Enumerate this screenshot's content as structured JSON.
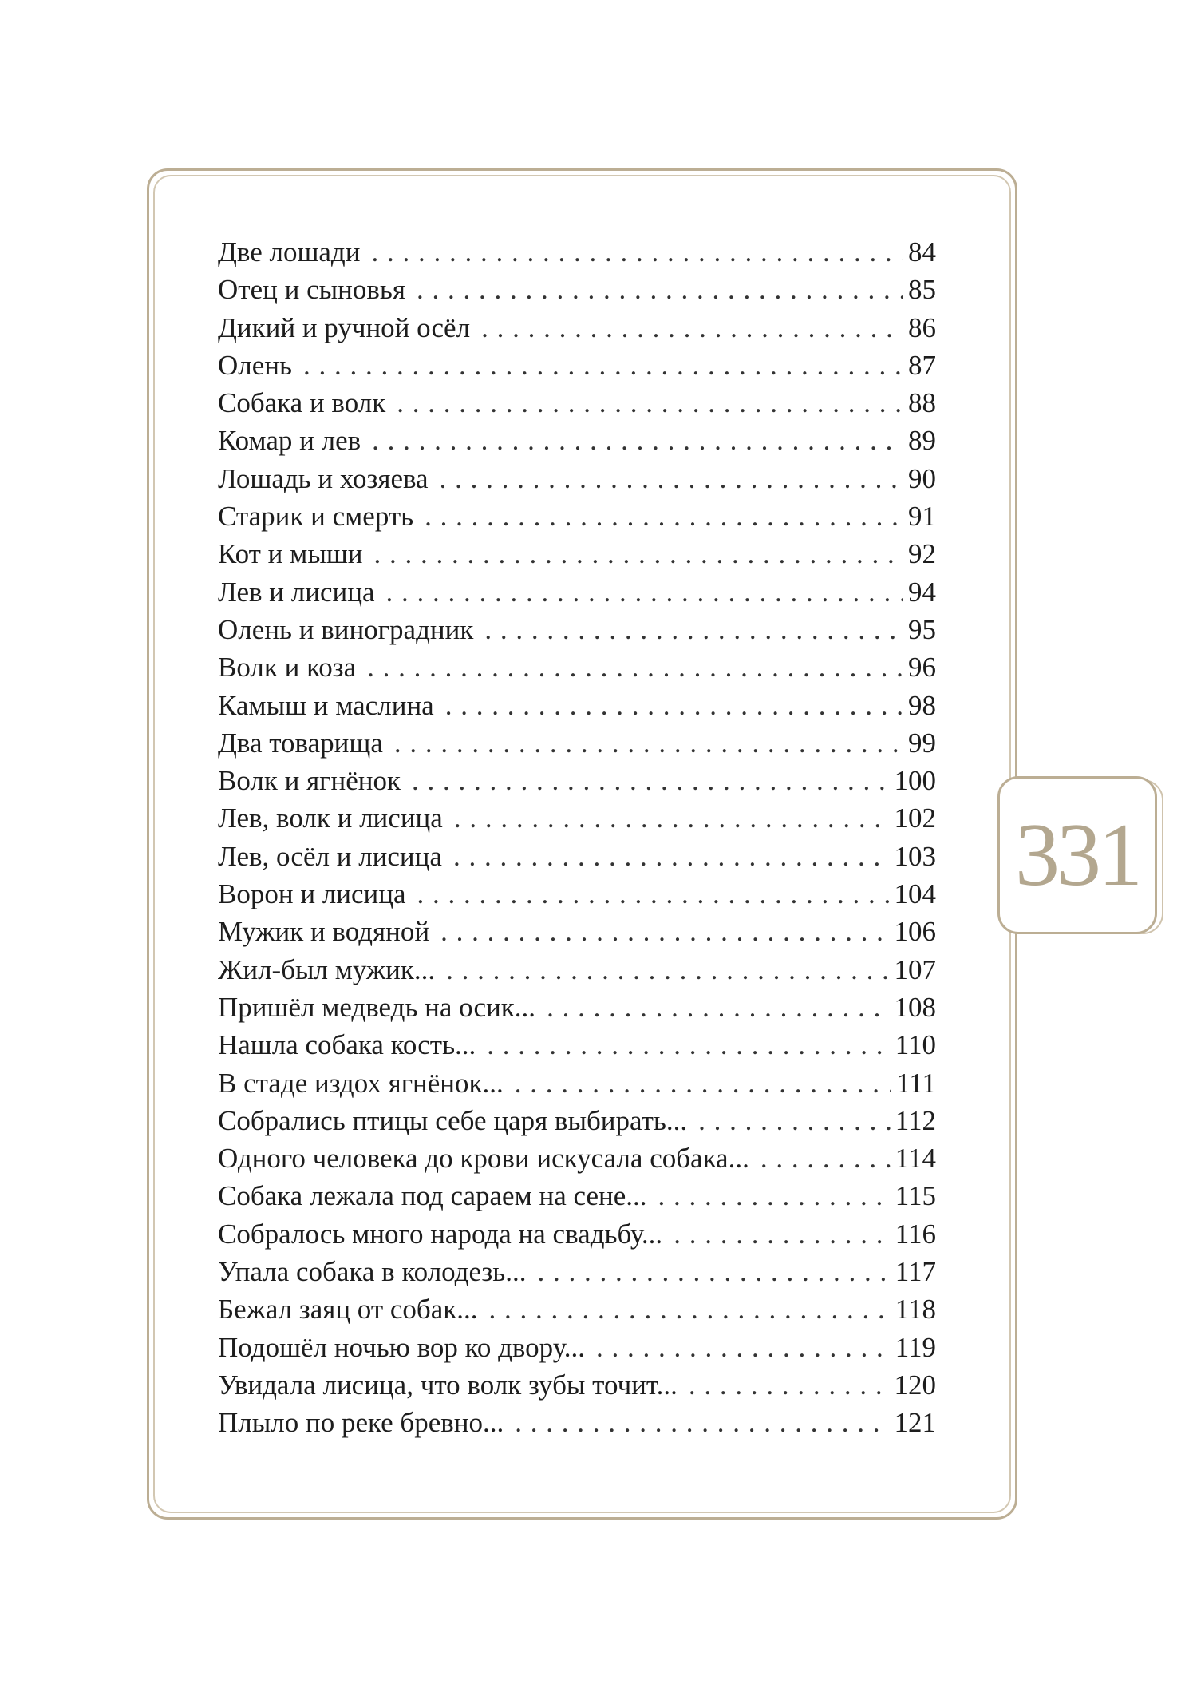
{
  "page_number": "331",
  "colors": {
    "frame": "#bcae94",
    "text": "#1d1d1d"
  },
  "toc": [
    {
      "title": "Две лошади",
      "page": "84"
    },
    {
      "title": "Отец и сыновья",
      "page": "85"
    },
    {
      "title": "Дикий и ручной осёл",
      "page": "86"
    },
    {
      "title": "Олень",
      "page": "87"
    },
    {
      "title": "Собака и волк",
      "page": "88"
    },
    {
      "title": "Комар и лев",
      "page": "89"
    },
    {
      "title": "Лошадь и хозяева",
      "page": "90"
    },
    {
      "title": "Старик и смерть",
      "page": "91"
    },
    {
      "title": "Кот и мыши",
      "page": "92"
    },
    {
      "title": "Лев и лисица",
      "page": "94"
    },
    {
      "title": "Олень и виноградник",
      "page": "95"
    },
    {
      "title": "Волк и коза",
      "page": "96"
    },
    {
      "title": "Камыш и маслина",
      "page": "98"
    },
    {
      "title": "Два товарища",
      "page": "99"
    },
    {
      "title": "Волк и ягнёнок",
      "page": "100"
    },
    {
      "title": "Лев, волк и лисица",
      "page": "102"
    },
    {
      "title": "Лев, осёл и лисица",
      "page": "103"
    },
    {
      "title": "Ворон и лисица",
      "page": "104"
    },
    {
      "title": "Мужик и водяной",
      "page": "106"
    },
    {
      "title": "Жил-был мужик...",
      "page": "107"
    },
    {
      "title": "Пришёл медведь на осик...",
      "page": "108"
    },
    {
      "title": "Нашла собака кость...",
      "page": "110"
    },
    {
      "title": "В стаде издох ягнёнок...",
      "page": "111"
    },
    {
      "title": "Собрались птицы себе царя выбирать...",
      "page": "112"
    },
    {
      "title": "Одного человека до крови искусала собака...",
      "page": "114"
    },
    {
      "title": "Собака лежала под сараем на сене...",
      "page": "115"
    },
    {
      "title": "Собралось много народа на свадьбу...",
      "page": "116"
    },
    {
      "title": "Упала собака в колодезь...",
      "page": "117"
    },
    {
      "title": "Бежал заяц от собак...",
      "page": "118"
    },
    {
      "title": "Подошёл ночью вор ко двору...",
      "page": "119"
    },
    {
      "title": "Увидала лисица, что волк зубы точит...",
      "page": "120"
    },
    {
      "title": "Плыло по реке бревно...",
      "page": "121"
    }
  ]
}
